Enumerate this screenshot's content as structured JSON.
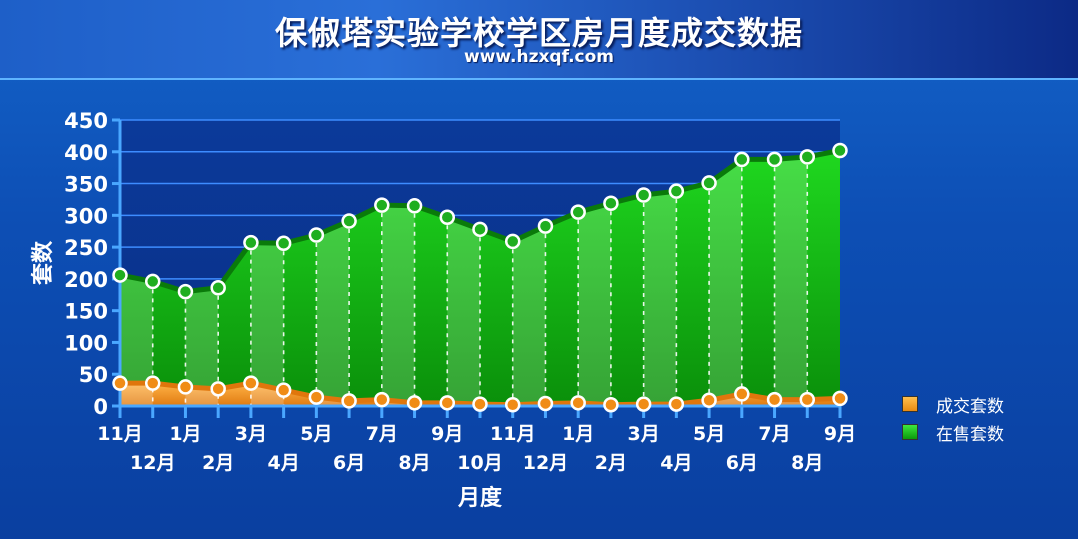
{
  "chart_data": {
    "type": "area",
    "title": "保俶塔实验学校学区房月度成交数据",
    "subtitle": "www.hzxqf.com",
    "xlabel": "月度",
    "ylabel": "套数",
    "ylim": [
      0,
      450
    ],
    "yticks": [
      0,
      50,
      100,
      150,
      200,
      250,
      300,
      350,
      400,
      450
    ],
    "categories": [
      "11月",
      "12月",
      "1月",
      "2月",
      "3月",
      "4月",
      "5月",
      "6月",
      "7月",
      "8月",
      "9月",
      "10月",
      "11月",
      "12月",
      "1月",
      "2月",
      "3月",
      "4月",
      "5月",
      "6月",
      "7月",
      "8月",
      "9月"
    ],
    "series": [
      {
        "name": "成交套数",
        "color": "#f39a1e",
        "values": [
          36,
          36,
          30,
          27,
          36,
          25,
          14,
          8,
          10,
          5,
          5,
          3,
          2,
          4,
          5,
          2,
          3,
          3,
          9,
          19,
          10,
          10,
          12
        ]
      },
      {
        "name": "在售套数",
        "color": "#2fc92f",
        "values": [
          206,
          196,
          180,
          186,
          257,
          256,
          269,
          291,
          316,
          315,
          297,
          278,
          259,
          283,
          305,
          319,
          332,
          338,
          351,
          388,
          388,
          392,
          402
        ]
      }
    ],
    "grid": true,
    "legend_position": "right"
  }
}
